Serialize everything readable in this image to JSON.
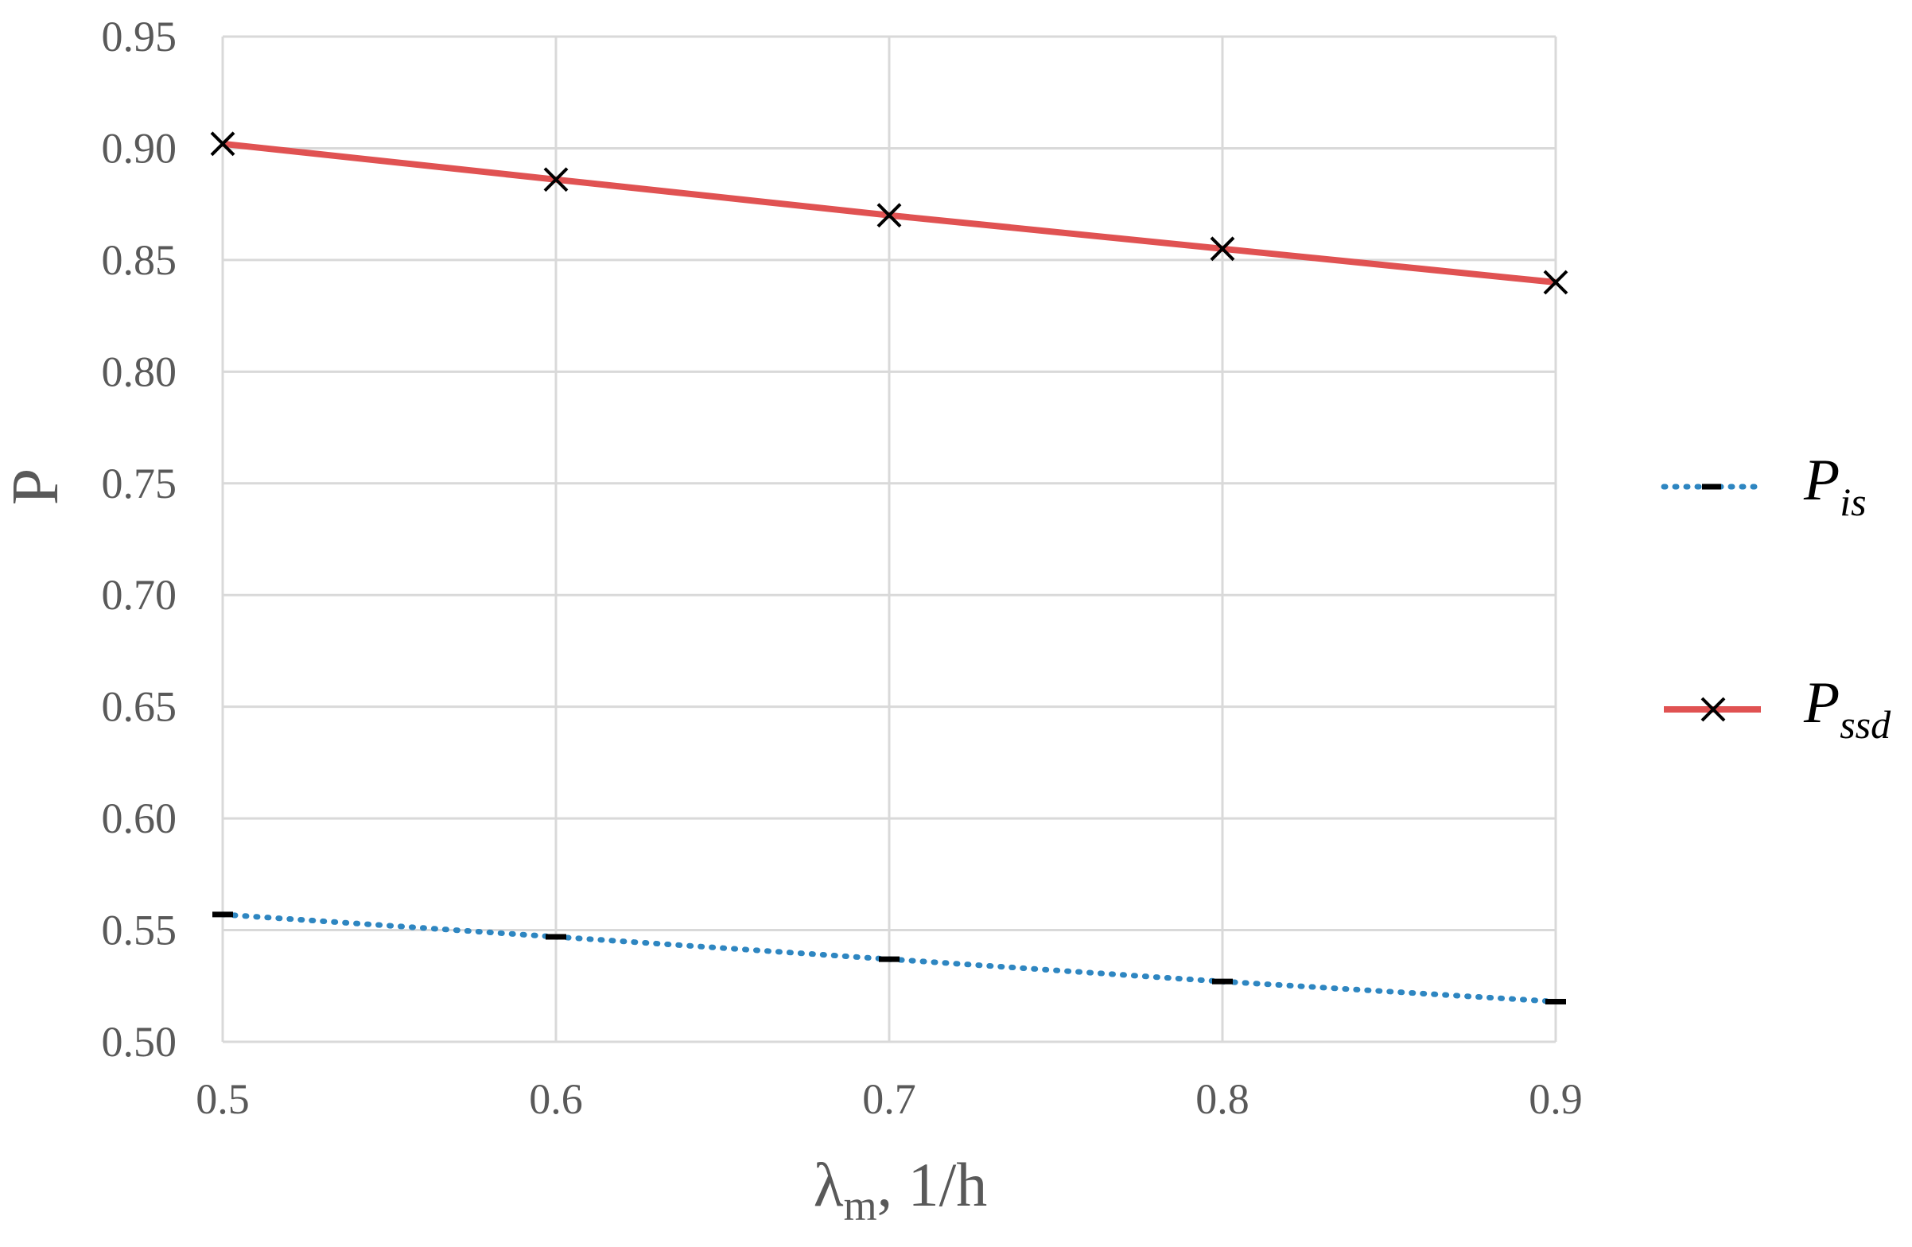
{
  "chart_data": {
    "type": "line",
    "x": [
      0.5,
      0.6,
      0.7,
      0.8,
      0.9
    ],
    "x_ticks": [
      "0.5",
      "0.6",
      "0.7",
      "0.8",
      "0.9"
    ],
    "y_ticks": [
      "0.50",
      "0.55",
      "0.60",
      "0.65",
      "0.70",
      "0.75",
      "0.80",
      "0.85",
      "0.90",
      "0.95"
    ],
    "xlim": [
      0.5,
      0.9
    ],
    "ylim": [
      0.5,
      0.95
    ],
    "ylabel": "P",
    "xlabel": {
      "symbol": "λ",
      "subscript": "m",
      "rest": ", 1/h"
    },
    "grid": true,
    "legend_position": "right",
    "series": [
      {
        "name_main": "P",
        "name_sub": "is",
        "values": [
          0.557,
          0.547,
          0.537,
          0.527,
          0.518
        ],
        "color": "#2e86c1",
        "line_style": "dotted",
        "marker": "dash"
      },
      {
        "name_main": "P",
        "name_sub": "ssd",
        "values": [
          0.902,
          0.886,
          0.87,
          0.855,
          0.84
        ],
        "color": "#e05252",
        "line_style": "solid",
        "marker": "x"
      }
    ]
  }
}
